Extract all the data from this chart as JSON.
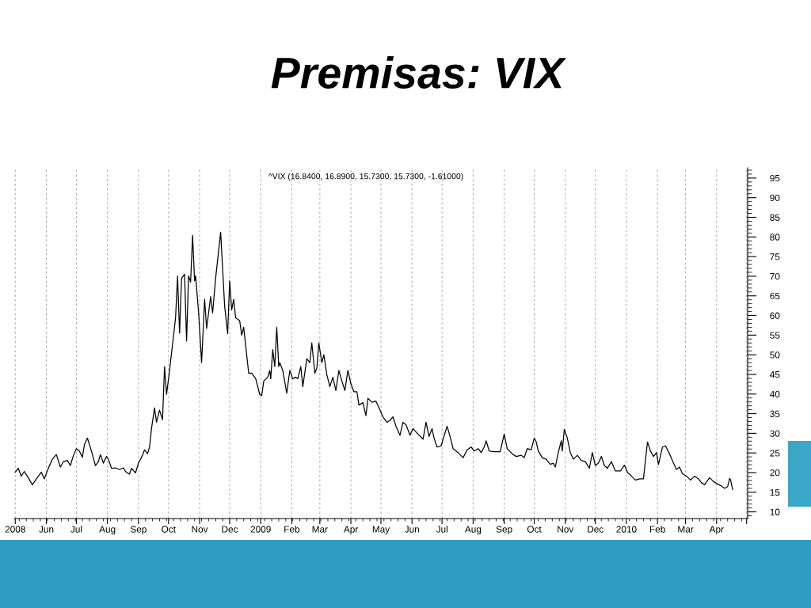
{
  "chart_data": {
    "type": "line",
    "title": "Premisas: VIX",
    "subtitle": "^VIX (16.8400, 16.8900, 15.7300, 15.7300, -1.61000)",
    "x": [
      "2008-05-01",
      "2008-05-04",
      "2008-05-07",
      "2008-05-10",
      "2008-05-14",
      "2008-05-18",
      "2008-05-23",
      "2008-05-27",
      "2008-05-30",
      "2008-06-03",
      "2008-06-07",
      "2008-06-11",
      "2008-06-15",
      "2008-06-18",
      "2008-06-22",
      "2008-06-25",
      "2008-06-28",
      "2008-07-01",
      "2008-07-04",
      "2008-07-07",
      "2008-07-09",
      "2008-07-12",
      "2008-07-16",
      "2008-07-20",
      "2008-07-23",
      "2008-07-25",
      "2008-07-28",
      "2008-07-31",
      "2008-08-02",
      "2008-08-05",
      "2008-08-09",
      "2008-08-13",
      "2008-08-17",
      "2008-08-19",
      "2008-08-23",
      "2008-08-25",
      "2008-08-29",
      "2008-09-01",
      "2008-09-05",
      "2008-09-07",
      "2008-09-10",
      "2008-09-12",
      "2008-09-14",
      "2008-09-17",
      "2008-09-19",
      "2008-09-22",
      "2008-09-25",
      "2008-09-27",
      "2008-09-29",
      "2008-10-02",
      "2008-10-05",
      "2008-10-08",
      "2008-10-10",
      "2008-10-12",
      "2008-10-14",
      "2008-10-17",
      "2008-10-19",
      "2008-10-21",
      "2008-10-23",
      "2008-10-25",
      "2008-10-27",
      "2008-10-28",
      "2008-10-31",
      "2008-11-03",
      "2008-11-06",
      "2008-11-08",
      "2008-11-12",
      "2008-11-14",
      "2008-11-17",
      "2008-11-22",
      "2008-11-26",
      "2008-11-29",
      "2008-12-01",
      "2008-12-03",
      "2008-12-05",
      "2008-12-07",
      "2008-12-11",
      "2008-12-13",
      "2008-12-15",
      "2008-12-20",
      "2008-12-23",
      "2008-12-27",
      "2008-12-31",
      "2009-01-02",
      "2009-01-04",
      "2009-01-08",
      "2009-01-10",
      "2009-01-11",
      "2009-01-13",
      "2009-01-15",
      "2009-01-17",
      "2009-01-19",
      "2009-01-20",
      "2009-01-23",
      "2009-01-27",
      "2009-01-30",
      "2009-02-02",
      "2009-02-05",
      "2009-02-07",
      "2009-02-10",
      "2009-02-12",
      "2009-02-16",
      "2009-02-19",
      "2009-02-21",
      "2009-02-24",
      "2009-02-26",
      "2009-02-28",
      "2009-03-03",
      "2009-03-05",
      "2009-03-08",
      "2009-03-11",
      "2009-03-14",
      "2009-03-17",
      "2009-03-20",
      "2009-03-23",
      "2009-03-26",
      "2009-03-29",
      "2009-04-01",
      "2009-04-04",
      "2009-04-07",
      "2009-04-09",
      "2009-04-13",
      "2009-04-16",
      "2009-04-18",
      "2009-04-22",
      "2009-04-26",
      "2009-04-29",
      "2009-05-03",
      "2009-05-07",
      "2009-05-10",
      "2009-05-13",
      "2009-05-16",
      "2009-05-20",
      "2009-05-23",
      "2009-05-26",
      "2009-05-30",
      "2009-06-02",
      "2009-06-07",
      "2009-06-12",
      "2009-06-15",
      "2009-06-18",
      "2009-06-21",
      "2009-06-23",
      "2009-06-26",
      "2009-06-30",
      "2009-07-06",
      "2009-07-09",
      "2009-07-12",
      "2009-07-17",
      "2009-07-22",
      "2009-07-26",
      "2009-07-30",
      "2009-08-02",
      "2009-08-06",
      "2009-08-09",
      "2009-08-12",
      "2009-08-14",
      "2009-08-17",
      "2009-08-21",
      "2009-08-28",
      "2009-09-01",
      "2009-09-04",
      "2009-09-09",
      "2009-09-13",
      "2009-09-18",
      "2009-09-21",
      "2009-09-24",
      "2009-09-28",
      "2009-10-01",
      "2009-10-03",
      "2009-10-05",
      "2009-10-09",
      "2009-10-13",
      "2009-10-17",
      "2009-10-20",
      "2009-10-22",
      "2009-10-25",
      "2009-10-28",
      "2009-10-29",
      "2009-10-31",
      "2009-11-03",
      "2009-11-06",
      "2009-11-09",
      "2009-11-13",
      "2009-11-17",
      "2009-11-21",
      "2009-11-25",
      "2009-11-28",
      "2009-12-01",
      "2009-12-04",
      "2009-12-07",
      "2009-12-10",
      "2009-12-13",
      "2009-12-17",
      "2009-12-21",
      "2009-12-26",
      "2009-12-30",
      "2010-01-02",
      "2010-01-06",
      "2010-01-10",
      "2010-01-14",
      "2010-01-18",
      "2010-01-22",
      "2010-01-25",
      "2010-01-28",
      "2010-01-31",
      "2010-02-02",
      "2010-02-06",
      "2010-02-09",
      "2010-02-13",
      "2010-02-17",
      "2010-02-20",
      "2010-02-23",
      "2010-02-26",
      "2010-03-02",
      "2010-03-06",
      "2010-03-10",
      "2010-03-14",
      "2010-03-17",
      "2010-03-20",
      "2010-03-25",
      "2010-03-29",
      "2010-04-02",
      "2010-04-05",
      "2010-04-09",
      "2010-04-12",
      "2010-04-14",
      "2010-04-15",
      "2010-04-17"
    ],
    "series": [
      {
        "color": "#000000",
        "values": [
          20.1,
          21.1,
          19.1,
          20.3,
          18.7,
          16.9,
          18.7,
          20.1,
          18.4,
          21.1,
          23.4,
          24.6,
          21.4,
          22.8,
          23.1,
          21.8,
          24.3,
          26.1,
          25.5,
          23.9,
          27.1,
          28.8,
          25.5,
          21.8,
          22.8,
          24.6,
          22.4,
          24.1,
          23.4,
          21.1,
          21.2,
          20.8,
          21.2,
          20.3,
          19.6,
          21.1,
          19.9,
          22.4,
          24.4,
          25.8,
          24.8,
          26.5,
          31.2,
          36.5,
          32.8,
          35.9,
          33.5,
          47.0,
          39.9,
          46.0,
          52.7,
          59.4,
          70.1,
          55.5,
          69.5,
          70.5,
          53.5,
          70.1,
          68.5,
          80.4,
          68.8,
          70.1,
          60.7,
          48.0,
          64.1,
          56.7,
          64.8,
          60.7,
          69.5,
          81.2,
          62.4,
          55.4,
          68.8,
          61.4,
          64.1,
          59.4,
          58.7,
          55.0,
          57.0,
          45.3,
          45.3,
          43.9,
          39.9,
          39.6,
          43.3,
          44.3,
          46.0,
          43.9,
          51.3,
          47.0,
          57.0,
          47.0,
          48.0,
          46.0,
          40.2,
          46.0,
          43.9,
          44.3,
          43.9,
          47.0,
          41.9,
          49.0,
          48.0,
          53.0,
          45.3,
          46.6,
          53.0,
          48.0,
          50.0,
          44.9,
          41.9,
          44.3,
          40.9,
          46.0,
          43.3,
          40.9,
          46.0,
          42.6,
          40.6,
          40.6,
          37.2,
          37.8,
          34.5,
          38.9,
          37.9,
          38.2,
          36.5,
          34.2,
          32.8,
          33.3,
          34.2,
          31.8,
          29.5,
          32.8,
          32.2,
          29.5,
          31.2,
          29.8,
          28.5,
          32.8,
          29.2,
          31.2,
          28.8,
          26.5,
          26.8,
          31.8,
          29.2,
          26.1,
          25.1,
          23.8,
          25.8,
          26.5,
          25.5,
          26.1,
          25.1,
          26.5,
          28.1,
          25.5,
          25.3,
          25.3,
          29.8,
          26.1,
          24.8,
          24.1,
          24.4,
          23.8,
          26.1,
          25.8,
          28.8,
          27.8,
          25.5,
          23.8,
          23.4,
          22.1,
          22.4,
          21.4,
          25.1,
          28.1,
          25.5,
          31.0,
          28.8,
          25.1,
          23.4,
          24.4,
          23.1,
          22.8,
          21.1,
          25.1,
          21.8,
          22.4,
          24.1,
          21.8,
          21.1,
          22.8,
          20.4,
          20.4,
          21.9,
          20.1,
          19.1,
          18.1,
          18.4,
          18.4,
          27.8,
          25.5,
          24.1,
          25.1,
          22.1,
          26.5,
          26.8,
          24.8,
          22.4,
          20.8,
          21.4,
          19.7,
          19.1,
          18.1,
          19.1,
          18.4,
          17.4,
          16.9,
          18.7,
          17.7,
          17.1,
          16.7,
          16.0,
          16.4,
          18.5,
          18.1,
          15.7
        ]
      }
    ],
    "xlim": [
      "2008-04-30",
      "2010-05-02"
    ],
    "xticks": [
      {
        "value": "2008-05-01",
        "label": "2008"
      },
      {
        "value": "2008-06-01",
        "label": "Jun"
      },
      {
        "value": "2008-07-01",
        "label": "Jul"
      },
      {
        "value": "2008-08-01",
        "label": "Aug"
      },
      {
        "value": "2008-09-01",
        "label": "Sep"
      },
      {
        "value": "2008-10-01",
        "label": "Oct"
      },
      {
        "value": "2008-11-01",
        "label": "Nov"
      },
      {
        "value": "2008-12-01",
        "label": "Dec"
      },
      {
        "value": "2009-01-01",
        "label": "2009"
      },
      {
        "value": "2009-02-01",
        "label": "Feb"
      },
      {
        "value": "2009-03-01",
        "label": "Mar"
      },
      {
        "value": "2009-04-01",
        "label": "Apr"
      },
      {
        "value": "2009-05-01",
        "label": "May"
      },
      {
        "value": "2009-06-01",
        "label": "Jun"
      },
      {
        "value": "2009-07-01",
        "label": "Jul"
      },
      {
        "value": "2009-08-01",
        "label": "Aug"
      },
      {
        "value": "2009-09-01",
        "label": "Sep"
      },
      {
        "value": "2009-10-01",
        "label": "Oct"
      },
      {
        "value": "2009-11-01",
        "label": "Nov"
      },
      {
        "value": "2009-12-01",
        "label": "Dec"
      },
      {
        "value": "2010-01-01",
        "label": "2010"
      },
      {
        "value": "2010-02-01",
        "label": "Feb"
      },
      {
        "value": "2010-03-01",
        "label": "Mar"
      },
      {
        "value": "2010-04-01",
        "label": "Apr"
      },
      {
        "value": "2010-05-01",
        "label": null
      }
    ],
    "ylim": [
      8.3,
      97.6
    ],
    "yticks": [
      10,
      15,
      20,
      25,
      30,
      35,
      40,
      45,
      50,
      55,
      60,
      65,
      70,
      75,
      80,
      85,
      90,
      95
    ],
    "grid": "x"
  }
}
